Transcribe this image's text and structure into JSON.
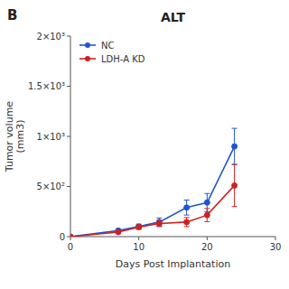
{
  "chart_data": {
    "type": "line",
    "title": "ALT",
    "panel_label": "B",
    "xlabel": "Days Post Implantation",
    "ylabel": "Tumor volume\n(mm3)",
    "x": [
      0,
      7,
      10,
      13,
      17,
      20,
      24
    ],
    "series": [
      {
        "name": "NC",
        "color": "#2255cc",
        "values": [
          0,
          60,
          100,
          145,
          290,
          340,
          900
        ],
        "errors": [
          0,
          15,
          25,
          40,
          75,
          90,
          180
        ]
      },
      {
        "name": "LDH-A KD",
        "color": "#cc2222",
        "values": [
          0,
          45,
          95,
          130,
          145,
          215,
          510
        ],
        "errors": [
          0,
          12,
          20,
          30,
          45,
          65,
          210
        ]
      }
    ],
    "xlim": [
      0,
      30
    ],
    "xticks": [
      0,
      10,
      20,
      30
    ],
    "ylim": [
      0,
      2000
    ],
    "yticks": [
      0,
      {
        "value": 500,
        "label": "5×10²"
      },
      {
        "value": 1000,
        "label": "1×10³"
      },
      {
        "value": 1500,
        "label": "1.5×10³"
      },
      {
        "value": 2000,
        "label": "2×10³"
      }
    ],
    "marker": "circle",
    "legend": "upper left",
    "grid": false
  }
}
